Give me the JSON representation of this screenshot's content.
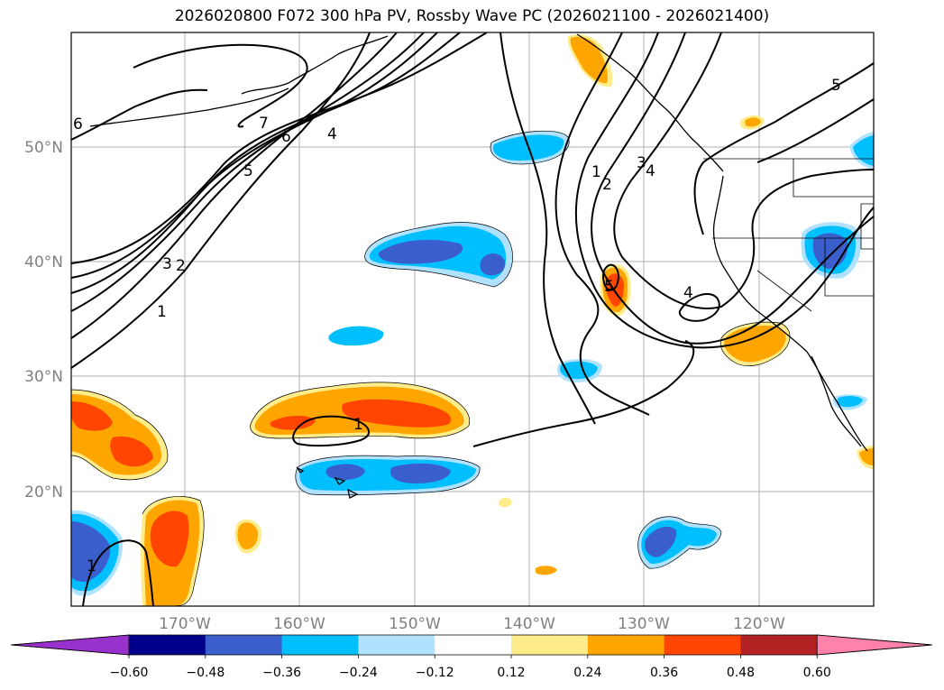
{
  "title": "2026020800 F072 300 hPa PV, Rossby Wave PC (2026021100 - 2026021400)",
  "lat_labels": [
    "50°N",
    "40°N",
    "30°N",
    "20°N"
  ],
  "lon_labels": [
    "170°W",
    "160°W",
    "150°W",
    "140°W",
    "130°W",
    "120°W"
  ],
  "colorbar": {
    "ticks": [
      "−0.60",
      "−0.48",
      "−0.36",
      "−0.24",
      "−0.12",
      "0.12",
      "0.24",
      "0.36",
      "0.48",
      "0.60"
    ],
    "colors": [
      "#9932cc",
      "#00008b",
      "#3a5fcd",
      "#00bfff",
      "#b0e2ff",
      "#ffffff",
      "#ffec8b",
      "#ffa500",
      "#ff4500",
      "#b22222",
      "#ff82ab"
    ]
  },
  "pv_contour_labels": [
    "1",
    "2",
    "3",
    "4",
    "5",
    "6",
    "7"
  ],
  "colors": {
    "negative_fill": "#00bfff",
    "positive_fill": "#ffa500"
  }
}
